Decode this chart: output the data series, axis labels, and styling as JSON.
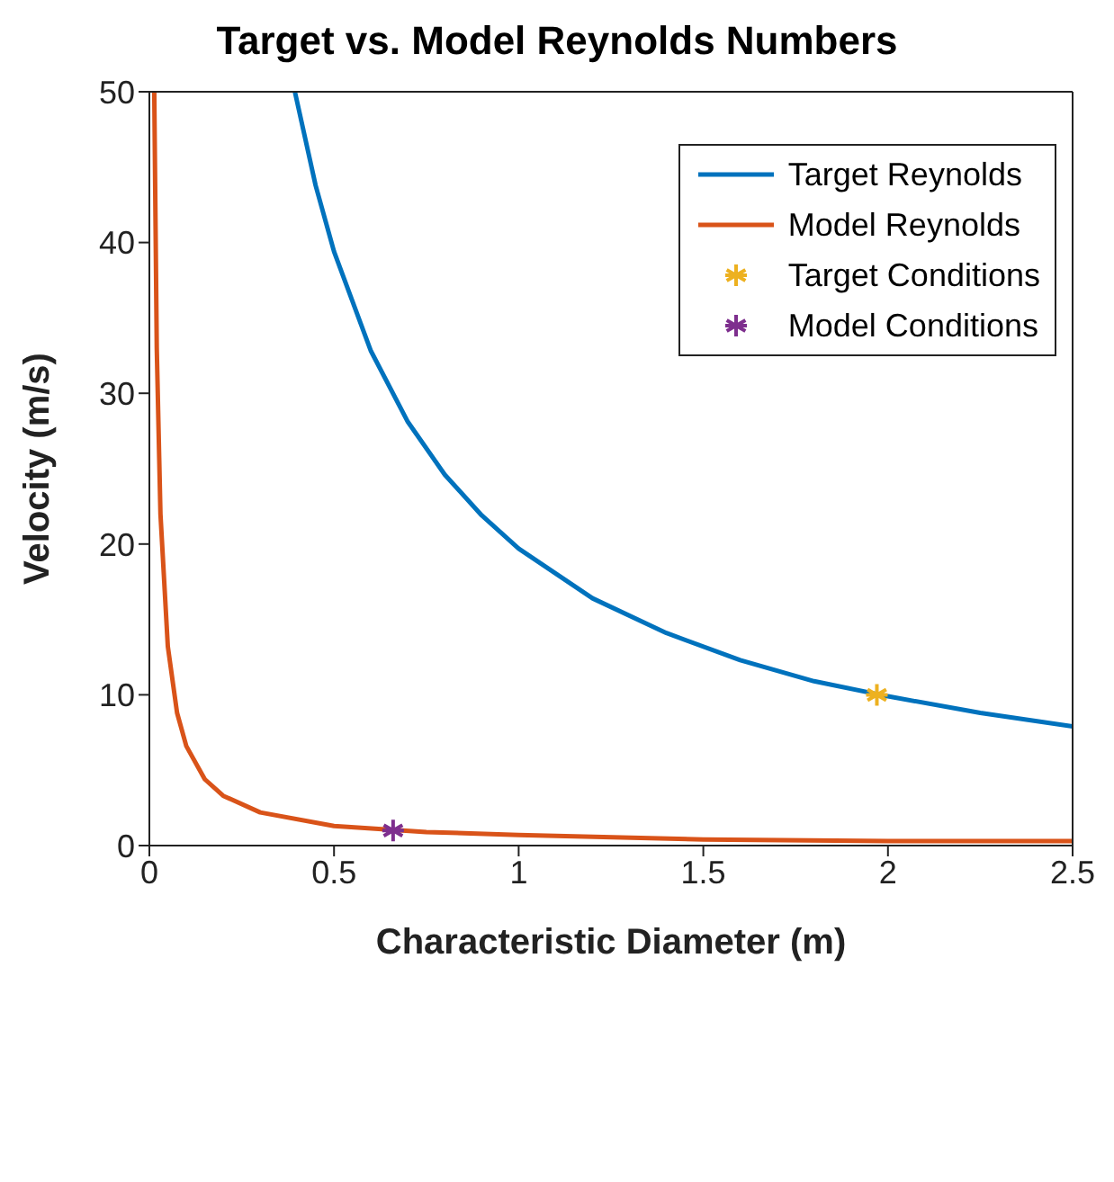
{
  "chart_data": {
    "type": "line",
    "title": "Target vs. Model Reynolds Numbers",
    "xlabel": "Characteristic Diameter (m)",
    "ylabel": "Velocity (m/s)",
    "xlim": [
      0,
      2.5
    ],
    "xticks": [
      0,
      0.5,
      1,
      1.5,
      2,
      2.5
    ],
    "ylim": [
      0,
      50
    ],
    "yticks": [
      0,
      10,
      20,
      30,
      40,
      50
    ],
    "legend": "top right",
    "line_style": "solid",
    "series": [
      {
        "name": "Target Reynolds",
        "color": "#0072bd",
        "marker": "none",
        "x": [
          0.394,
          0.45,
          0.5,
          0.6,
          0.7,
          0.8,
          0.9,
          1.0,
          1.2,
          1.4,
          1.6,
          1.8,
          2.0,
          2.25,
          2.5
        ],
        "values": [
          50,
          43.8,
          39.4,
          32.8,
          28.1,
          24.6,
          21.9,
          19.7,
          16.4,
          14.1,
          12.3,
          10.9,
          9.9,
          8.8,
          7.9
        ]
      },
      {
        "name": "Model Reynolds",
        "color": "#d95319",
        "marker": "none",
        "x": [
          0.0132,
          0.02,
          0.03,
          0.05,
          0.075,
          0.1,
          0.15,
          0.2,
          0.3,
          0.5,
          0.75,
          1.0,
          1.5,
          2.0,
          2.5
        ],
        "values": [
          50,
          33,
          22,
          13.2,
          8.8,
          6.6,
          4.4,
          3.3,
          2.2,
          1.3,
          0.9,
          0.7,
          0.4,
          0.3,
          0.3
        ]
      },
      {
        "name": "Target Conditions",
        "type": "scatter",
        "color": "#edb120",
        "marker": "cross",
        "x": [
          1.97
        ],
        "values": [
          10
        ]
      },
      {
        "name": "Model Conditions",
        "type": "scatter",
        "color": "#7e2f8e",
        "marker": "cross",
        "x": [
          0.66
        ],
        "values": [
          1
        ]
      }
    ]
  }
}
